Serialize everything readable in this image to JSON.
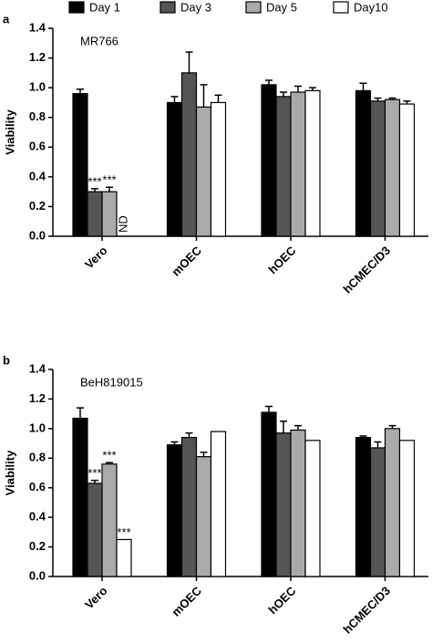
{
  "chart_data": [
    {
      "type": "bar",
      "panel_label": "a",
      "annotation": "MR766",
      "y_label": "Viability",
      "categories": [
        "Vero",
        "mOEC",
        "hOEC",
        "hCMEC/D3"
      ],
      "series": [
        {
          "name": "Day 1",
          "color": "#000000",
          "values": [
            0.96,
            0.9,
            1.02,
            0.98
          ],
          "errors": [
            0.03,
            0.04,
            0.03,
            0.05
          ],
          "annotations": [
            null,
            null,
            null,
            null
          ]
        },
        {
          "name": "Day 3",
          "color": "#555555",
          "values": [
            0.3,
            1.1,
            0.94,
            0.91
          ],
          "errors": [
            0.02,
            0.14,
            0.03,
            0.02
          ],
          "annotations": [
            "***",
            null,
            null,
            null
          ]
        },
        {
          "name": "Day 5",
          "color": "#aaaaaa",
          "values": [
            0.3,
            0.87,
            0.97,
            0.92
          ],
          "errors": [
            0.03,
            0.15,
            0.04,
            0.01
          ],
          "annotations": [
            "***",
            null,
            null,
            null
          ]
        },
        {
          "name": "Day10",
          "color": "#ffffff",
          "values": [
            null,
            0.9,
            0.98,
            0.89
          ],
          "errors": [
            null,
            0.05,
            0.02,
            0.02
          ],
          "annotations": [
            "ND",
            null,
            null,
            null
          ]
        }
      ],
      "ylim": [
        0,
        1.4
      ],
      "yticks": [
        {
          "value": 0,
          "label": "0.0"
        },
        {
          "value": 0.2,
          "label": "0.2"
        },
        {
          "value": 0.4,
          "label": "0.4"
        },
        {
          "value": 0.6,
          "label": "0.6"
        },
        {
          "value": 0.8,
          "label": "0.8"
        },
        {
          "value": 1,
          "label": "1.0"
        },
        {
          "value": 1.2,
          "label": "1.2"
        },
        {
          "value": 1.4,
          "label": "1.4"
        }
      ]
    },
    {
      "type": "bar",
      "panel_label": "b",
      "annotation": "BeH819015",
      "y_label": "Viability",
      "categories": [
        "Vero",
        "mOEC",
        "hOEC",
        "hCMEC/D3"
      ],
      "series": [
        {
          "name": "Day 1",
          "color": "#000000",
          "values": [
            1.07,
            0.89,
            1.11,
            0.94
          ],
          "errors": [
            0.07,
            0.02,
            0.04,
            0.01
          ],
          "annotations": [
            null,
            null,
            null,
            null
          ]
        },
        {
          "name": "Day 3",
          "color": "#555555",
          "values": [
            0.63,
            0.94,
            0.97,
            0.87
          ],
          "errors": [
            0.02,
            0.03,
            0.08,
            0.04
          ],
          "annotations": [
            "***",
            null,
            null,
            null
          ]
        },
        {
          "name": "Day 5",
          "color": "#aaaaaa",
          "values": [
            0.76,
            0.81,
            0.99,
            1.0
          ],
          "errors": [
            0.01,
            0.03,
            0.03,
            0.02
          ],
          "annotations": [
            "***",
            null,
            null,
            null
          ]
        },
        {
          "name": "Day10",
          "color": "#ffffff",
          "values": [
            0.25,
            0.98,
            0.92,
            0.92
          ],
          "errors": [
            null,
            null,
            null,
            null
          ],
          "annotations": [
            "***",
            null,
            null,
            null
          ]
        }
      ],
      "ylim": [
        0,
        1.4
      ],
      "yticks": [
        {
          "value": 0,
          "label": "0.0"
        },
        {
          "value": 0.2,
          "label": "0.2"
        },
        {
          "value": 0.4,
          "label": "0.4"
        },
        {
          "value": 0.6,
          "label": "0.6"
        },
        {
          "value": 0.8,
          "label": "0.8"
        },
        {
          "value": 1,
          "label": "1.0"
        },
        {
          "value": 1.2,
          "label": "1.2"
        },
        {
          "value": 1.4,
          "label": "1.4"
        }
      ]
    }
  ]
}
